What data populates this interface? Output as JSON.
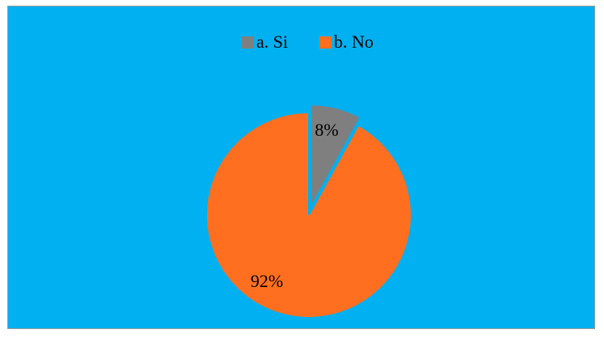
{
  "chart_data": {
    "type": "pie",
    "background_color": "#00B0F0",
    "legend_position": "top",
    "slices": [
      {
        "label": "a. Si",
        "value": 8,
        "value_label": "8%",
        "color": "#7F7F7F",
        "exploded": true
      },
      {
        "label": "b. No",
        "value": 92,
        "value_label": "92%",
        "color": "#FF6F1F",
        "exploded": false
      }
    ]
  }
}
